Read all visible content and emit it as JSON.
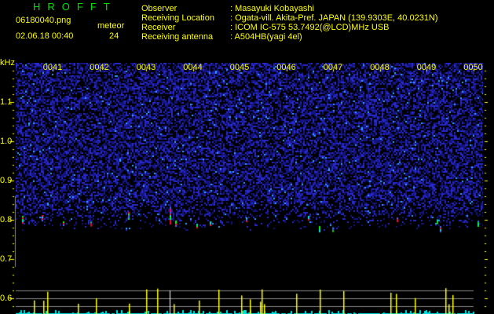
{
  "app_title": "HROFFT",
  "file_name": "06180040.png",
  "datetime": "02.06.18 00:40",
  "meteor_label": "meteor",
  "meteor_count": "24",
  "info": [
    {
      "label": "Observer",
      "value": ": Masayuki Kobayashi"
    },
    {
      "label": "Receiving Location",
      "value": ": Ogata-vill. Akita-Pref. JAPAN (139.9303E, 40.0231N)"
    },
    {
      "label": "Receiver",
      "value": ": ICOM IC-575 53.7492(@LCD)MHz USB"
    },
    {
      "label": "Receiving antenna",
      "value": ": A504HB(yagi 4el)"
    }
  ],
  "freq_unit": "kHz",
  "freq_labels": [
    "1.1",
    "1.0",
    "0.9",
    "0.8",
    "0.7",
    "0.6"
  ],
  "time_labels": [
    "0041",
    "0042",
    "0043",
    "0044",
    "0045",
    "0046",
    "0047",
    "0048",
    "0049",
    "0050"
  ],
  "colors": {
    "background": "#000000",
    "noise": "#2020c0",
    "axis": "#ffff00",
    "title": "#00e000",
    "histogram": "#00e0e0",
    "histogram_peak": "#ffff00",
    "grid": "#888888"
  }
}
